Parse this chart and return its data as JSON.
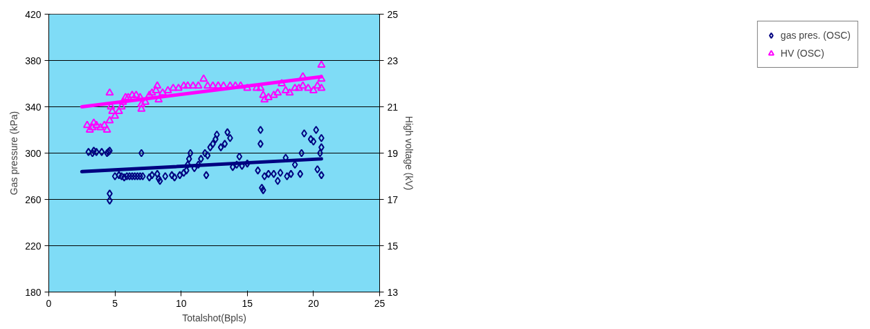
{
  "chart_data": {
    "type": "scatter",
    "xlabel": "Totalshot(Bpls)",
    "ylabel": "Gas pressure (kPa)",
    "y2label": "High voltage (kV)",
    "xlim": [
      0,
      25
    ],
    "xticks": [
      0,
      5,
      10,
      15,
      20,
      25
    ],
    "ylim": [
      180,
      420
    ],
    "yticks": [
      180,
      220,
      260,
      300,
      340,
      380,
      420
    ],
    "y2lim": [
      13,
      25
    ],
    "y2ticks": [
      13,
      15,
      17,
      19,
      21,
      23,
      25
    ],
    "grid": "y",
    "legend": "right",
    "series": [
      {
        "name": "gas pres. (OSC)",
        "color": "#000080",
        "marker": "diamond",
        "x": [
          3.0,
          3.3,
          3.4,
          3.6,
          4.0,
          4.4,
          4.5,
          4.6,
          4.6,
          4.6,
          5.0,
          5.3,
          5.5,
          5.7,
          5.9,
          6.1,
          6.3,
          6.5,
          6.7,
          6.9,
          7.0,
          7.1,
          7.6,
          7.8,
          8.2,
          8.3,
          8.4,
          8.8,
          9.3,
          9.5,
          9.9,
          10.2,
          10.4,
          10.5,
          10.6,
          10.7,
          11.0,
          11.3,
          11.5,
          11.8,
          11.9,
          12.0,
          12.2,
          12.4,
          12.6,
          12.7,
          13.0,
          13.3,
          13.5,
          13.7,
          13.9,
          14.2,
          14.4,
          14.6,
          15.0,
          15.8,
          16.0,
          16.0,
          16.1,
          16.2,
          16.3,
          16.6,
          17.0,
          17.3,
          17.5,
          17.9,
          18.0,
          18.3,
          18.6,
          19.0,
          19.1,
          19.3,
          19.8,
          20.0,
          20.2,
          20.3,
          20.5,
          20.6,
          20.6,
          20.6
        ],
        "values": [
          301,
          300,
          302,
          301,
          301,
          300,
          301,
          302,
          265,
          259,
          280,
          281,
          280,
          279,
          280,
          280,
          280,
          280,
          280,
          280,
          300,
          280,
          279,
          281,
          282,
          278,
          276,
          280,
          281,
          279,
          281,
          283,
          285,
          290,
          295,
          300,
          287,
          290,
          295,
          300,
          281,
          298,
          305,
          308,
          312,
          316,
          305,
          308,
          318,
          313,
          288,
          290,
          297,
          289,
          291,
          285,
          308,
          320,
          270,
          268,
          280,
          282,
          282,
          276,
          283,
          296,
          280,
          282,
          290,
          282,
          300,
          317,
          312,
          310,
          320,
          286,
          300,
          313,
          281,
          305
        ]
      },
      {
        "name": "HV (OSC)",
        "color": "#ff00ff",
        "marker": "triangle",
        "axis": "y2",
        "x": [
          2.9,
          3.1,
          3.3,
          3.4,
          3.6,
          3.9,
          4.2,
          4.4,
          4.6,
          4.6,
          4.7,
          4.8,
          5.0,
          5.3,
          5.5,
          5.6,
          5.8,
          6.0,
          6.3,
          6.6,
          6.9,
          7.0,
          7.0,
          7.3,
          7.6,
          7.8,
          8.1,
          8.2,
          8.3,
          8.6,
          9.0,
          9.4,
          9.8,
          10.2,
          10.5,
          10.9,
          11.3,
          11.7,
          12.0,
          12.4,
          12.8,
          13.2,
          13.7,
          14.1,
          14.5,
          15.0,
          15.7,
          16.0,
          16.2,
          16.3,
          16.6,
          17.0,
          17.3,
          17.6,
          17.9,
          18.2,
          18.6,
          18.9,
          19.2,
          19.2,
          19.6,
          20.0,
          20.3,
          20.6,
          20.6,
          20.6
        ],
        "values": [
          20.2,
          20.0,
          20.1,
          20.3,
          20.2,
          20.1,
          20.2,
          20.0,
          20.4,
          21.6,
          21.0,
          20.8,
          20.6,
          20.8,
          21.0,
          21.2,
          21.4,
          21.4,
          21.5,
          21.5,
          21.4,
          20.9,
          21.1,
          21.2,
          21.5,
          21.6,
          21.7,
          21.9,
          21.3,
          21.6,
          21.7,
          21.8,
          21.8,
          21.9,
          21.9,
          21.9,
          21.9,
          22.2,
          21.9,
          21.9,
          21.9,
          21.9,
          21.9,
          21.9,
          21.9,
          21.8,
          21.8,
          21.8,
          21.5,
          21.3,
          21.4,
          21.5,
          21.6,
          22.0,
          21.7,
          21.6,
          21.8,
          21.8,
          22.3,
          21.9,
          21.8,
          21.7,
          21.9,
          22.8,
          22.2,
          21.8
        ]
      },
      {
        "type": "line",
        "color": "#000080",
        "x": [
          2.5,
          20.6
        ],
        "values": [
          284,
          295
        ]
      },
      {
        "type": "line",
        "color": "#ff00ff",
        "axis": "y2",
        "x": [
          2.5,
          20.6
        ],
        "values": [
          21.0,
          22.3
        ]
      }
    ]
  }
}
